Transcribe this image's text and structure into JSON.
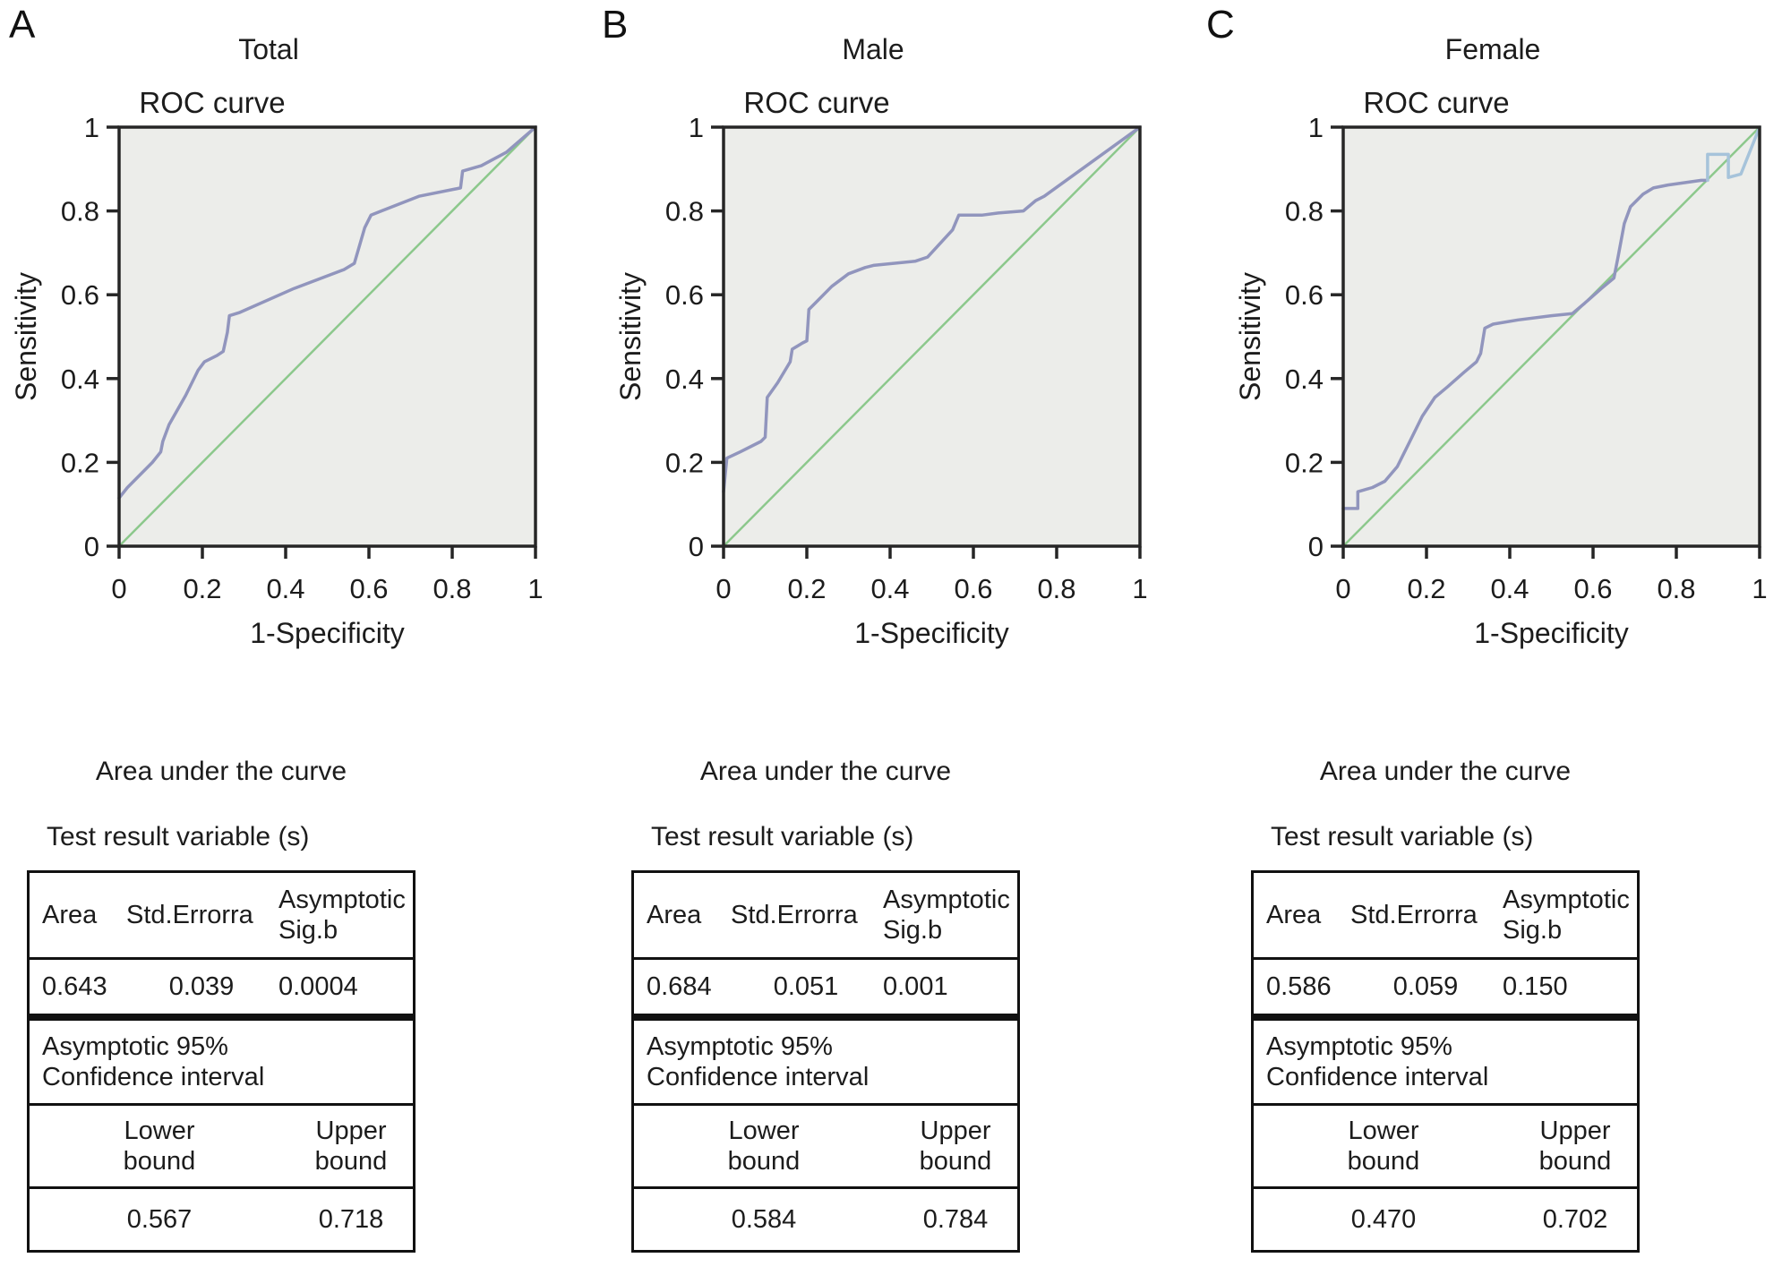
{
  "colors": {
    "roc_curve": "#9195bd",
    "reference_line": "#8cc88c",
    "step_segment": "#a6c3da",
    "plot_background": "#ecedea",
    "axis_line": "#262626",
    "text": "#1c1c1c"
  },
  "figure": {
    "panels": [
      {
        "letter": "A",
        "title": "Total"
      },
      {
        "letter": "B",
        "title": "Male"
      },
      {
        "letter": "C",
        "title": "Female"
      }
    ]
  },
  "chart_data": [
    {
      "type": "line",
      "panel": "A",
      "group": "Total",
      "title": "ROC curve",
      "xlabel": "1-Specificity",
      "ylabel": "Sensitivity",
      "xlim": [
        0,
        1
      ],
      "ylim": [
        0,
        1
      ],
      "grid": false,
      "legend": "none",
      "xticks": [
        "0",
        "0.2",
        "0.4",
        "0.6",
        "0.8",
        "1"
      ],
      "yticks": [
        "0",
        "0.2",
        "0.4",
        "0.6",
        "0.8",
        "1"
      ],
      "series": [
        {
          "key": "reference-line",
          "name": "Reference diagonal",
          "color_key": "reference_line",
          "width": 2.5,
          "points": [
            [
              0,
              0
            ],
            [
              1,
              1
            ]
          ]
        },
        {
          "key": "roc-curve",
          "name": "ROC curve (Total)",
          "color_key": "roc_curve",
          "width": 3.5,
          "points": [
            [
              0,
              0.115
            ],
            [
              0.02,
              0.14
            ],
            [
              0.05,
              0.17
            ],
            [
              0.08,
              0.2
            ],
            [
              0.1,
              0.225
            ],
            [
              0.105,
              0.25
            ],
            [
              0.12,
              0.29
            ],
            [
              0.16,
              0.36
            ],
            [
              0.19,
              0.42
            ],
            [
              0.205,
              0.44
            ],
            [
              0.235,
              0.455
            ],
            [
              0.25,
              0.465
            ],
            [
              0.26,
              0.51
            ],
            [
              0.265,
              0.55
            ],
            [
              0.29,
              0.558
            ],
            [
              0.42,
              0.615
            ],
            [
              0.54,
              0.66
            ],
            [
              0.565,
              0.675
            ],
            [
              0.59,
              0.76
            ],
            [
              0.605,
              0.79
            ],
            [
              0.63,
              0.8
            ],
            [
              0.72,
              0.835
            ],
            [
              0.82,
              0.855
            ],
            [
              0.825,
              0.895
            ],
            [
              0.87,
              0.908
            ],
            [
              0.93,
              0.94
            ],
            [
              1,
              1
            ]
          ]
        }
      ]
    },
    {
      "type": "line",
      "panel": "B",
      "group": "Male",
      "title": "ROC curve",
      "xlabel": "1-Specificity",
      "ylabel": "Sensitivity",
      "xlim": [
        0,
        1
      ],
      "ylim": [
        0,
        1
      ],
      "grid": false,
      "legend": "none",
      "xticks": [
        "0",
        "0.2",
        "0.4",
        "0.6",
        "0.8",
        "1"
      ],
      "yticks": [
        "0",
        "0.2",
        "0.4",
        "0.6",
        "0.8",
        "1"
      ],
      "series": [
        {
          "key": "reference-line",
          "name": "Reference diagonal",
          "color_key": "reference_line",
          "width": 2.5,
          "points": [
            [
              0,
              0
            ],
            [
              1,
              1
            ]
          ]
        },
        {
          "key": "roc-curve",
          "name": "ROC curve (Male)",
          "color_key": "roc_curve",
          "width": 3.5,
          "points": [
            [
              0,
              0.13
            ],
            [
              0.008,
              0.21
            ],
            [
              0.04,
              0.225
            ],
            [
              0.09,
              0.25
            ],
            [
              0.1,
              0.26
            ],
            [
              0.105,
              0.355
            ],
            [
              0.13,
              0.39
            ],
            [
              0.16,
              0.44
            ],
            [
              0.165,
              0.47
            ],
            [
              0.19,
              0.485
            ],
            [
              0.2,
              0.49
            ],
            [
              0.205,
              0.565
            ],
            [
              0.22,
              0.58
            ],
            [
              0.26,
              0.62
            ],
            [
              0.3,
              0.65
            ],
            [
              0.34,
              0.665
            ],
            [
              0.36,
              0.67
            ],
            [
              0.46,
              0.68
            ],
            [
              0.49,
              0.69
            ],
            [
              0.55,
              0.755
            ],
            [
              0.565,
              0.79
            ],
            [
              0.62,
              0.79
            ],
            [
              0.66,
              0.795
            ],
            [
              0.72,
              0.8
            ],
            [
              0.75,
              0.825
            ],
            [
              0.77,
              0.835
            ],
            [
              1,
              1
            ]
          ]
        }
      ]
    },
    {
      "type": "line",
      "panel": "C",
      "group": "Female",
      "title": "ROC curve",
      "xlabel": "1-Specificity",
      "ylabel": "Sensitivity",
      "xlim": [
        0,
        1
      ],
      "ylim": [
        0,
        1
      ],
      "grid": false,
      "legend": "none",
      "xticks": [
        "0",
        "0.2",
        "0.4",
        "0.6",
        "0.8",
        "1"
      ],
      "yticks": [
        "0",
        "0.2",
        "0.4",
        "0.6",
        "0.8",
        "1"
      ],
      "series": [
        {
          "key": "reference-line",
          "name": "Reference diagonal",
          "color_key": "reference_line",
          "width": 2.5,
          "points": [
            [
              0,
              0
            ],
            [
              1,
              1
            ]
          ]
        },
        {
          "key": "roc-curve",
          "name": "ROC curve (Female)",
          "color_key": "roc_curve",
          "width": 3.5,
          "points": [
            [
              0,
              0.09
            ],
            [
              0.035,
              0.09
            ],
            [
              0.035,
              0.13
            ],
            [
              0.07,
              0.14
            ],
            [
              0.1,
              0.155
            ],
            [
              0.13,
              0.19
            ],
            [
              0.16,
              0.25
            ],
            [
              0.19,
              0.31
            ],
            [
              0.22,
              0.355
            ],
            [
              0.25,
              0.38
            ],
            [
              0.29,
              0.415
            ],
            [
              0.32,
              0.44
            ],
            [
              0.33,
              0.46
            ],
            [
              0.34,
              0.52
            ],
            [
              0.36,
              0.53
            ],
            [
              0.42,
              0.54
            ],
            [
              0.5,
              0.55
            ],
            [
              0.55,
              0.555
            ],
            [
              0.58,
              0.58
            ],
            [
              0.62,
              0.615
            ],
            [
              0.65,
              0.64
            ],
            [
              0.66,
              0.69
            ],
            [
              0.675,
              0.77
            ],
            [
              0.69,
              0.81
            ],
            [
              0.72,
              0.84
            ],
            [
              0.745,
              0.855
            ],
            [
              0.78,
              0.862
            ],
            [
              0.86,
              0.873
            ],
            [
              0.875,
              0.873
            ]
          ]
        },
        {
          "key": "step-segment",
          "name": "ROC step segment (Female)",
          "color_key": "step_segment",
          "width": 3.5,
          "points": [
            [
              0.875,
              0.873
            ],
            [
              0.875,
              0.935
            ],
            [
              0.925,
              0.935
            ],
            [
              0.925,
              0.88
            ],
            [
              0.955,
              0.888
            ],
            [
              1,
              1
            ]
          ]
        }
      ]
    }
  ],
  "tables": [
    {
      "heading": "Area under the curve",
      "subheading": "Test result variable (s)",
      "col_area": "Area",
      "col_std": "Std.Errorra",
      "col_sig": [
        "Asymptotic",
        "Sig.b"
      ],
      "area": "0.643",
      "std_error": "0.039",
      "sig": "0.0004",
      "ci_line1": "Asymptotic 95%",
      "ci_line2": "Confidence interval",
      "lower_label": [
        "Lower",
        "bound"
      ],
      "upper_label": [
        "Upper",
        "bound"
      ],
      "lower": "0.567",
      "upper": "0.718"
    },
    {
      "heading": "Area under the curve",
      "subheading": "Test result variable (s)",
      "col_area": "Area",
      "col_std": "Std.Errorra",
      "col_sig": [
        "Asymptotic",
        "Sig.b"
      ],
      "area": "0.684",
      "std_error": "0.051",
      "sig": "0.001",
      "ci_line1": "Asymptotic 95%",
      "ci_line2": "Confidence interval",
      "lower_label": [
        "Lower",
        "bound"
      ],
      "upper_label": [
        "Upper",
        "bound"
      ],
      "lower": "0.584",
      "upper": "0.784"
    },
    {
      "heading": "Area under the curve",
      "subheading": "Test result variable (s)",
      "col_area": "Area",
      "col_std": "Std.Errorra",
      "col_sig": [
        "Asymptotic",
        "Sig.b"
      ],
      "area": "0.586",
      "std_error": "0.059",
      "sig": "0.150",
      "ci_line1": "Asymptotic 95%",
      "ci_line2": "Confidence interval",
      "lower_label": [
        "Lower",
        "bound"
      ],
      "upper_label": [
        "Upper",
        "bound"
      ],
      "lower": "0.470",
      "upper": "0.702"
    }
  ]
}
